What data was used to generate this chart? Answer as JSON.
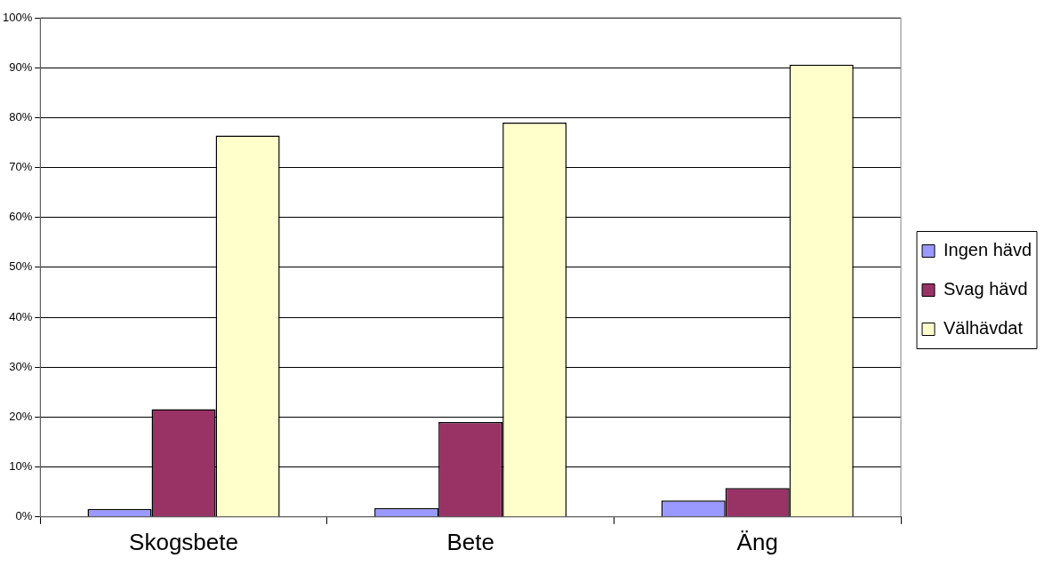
{
  "chart_data": {
    "type": "bar",
    "categories": [
      "Skogsbete",
      "Bete",
      "Äng"
    ],
    "series": [
      {
        "name": "Ingen hävd",
        "color": "#9999ff",
        "values": [
          1.6,
          1.8,
          3.3
        ]
      },
      {
        "name": "Svag hävd",
        "color": "#993366",
        "values": [
          21.6,
          19.0,
          5.8
        ]
      },
      {
        "name": "Välhävdat",
        "color": "#ffffcc",
        "values": [
          76.4,
          79.0,
          90.6
        ]
      }
    ],
    "ylim": [
      0,
      100
    ],
    "yticks": [
      {
        "value": 0,
        "label": "0%"
      },
      {
        "value": 10,
        "label": "10%"
      },
      {
        "value": 20,
        "label": "20%"
      },
      {
        "value": 30,
        "label": "30%"
      },
      {
        "value": 40,
        "label": "40%"
      },
      {
        "value": 50,
        "label": "50%"
      },
      {
        "value": 60,
        "label": "60%"
      },
      {
        "value": 70,
        "label": "70%"
      },
      {
        "value": 80,
        "label": "80%"
      },
      {
        "value": 90,
        "label": "90%"
      },
      {
        "value": 100,
        "label": "100%"
      }
    ],
    "grid": "y",
    "legend": "right"
  }
}
